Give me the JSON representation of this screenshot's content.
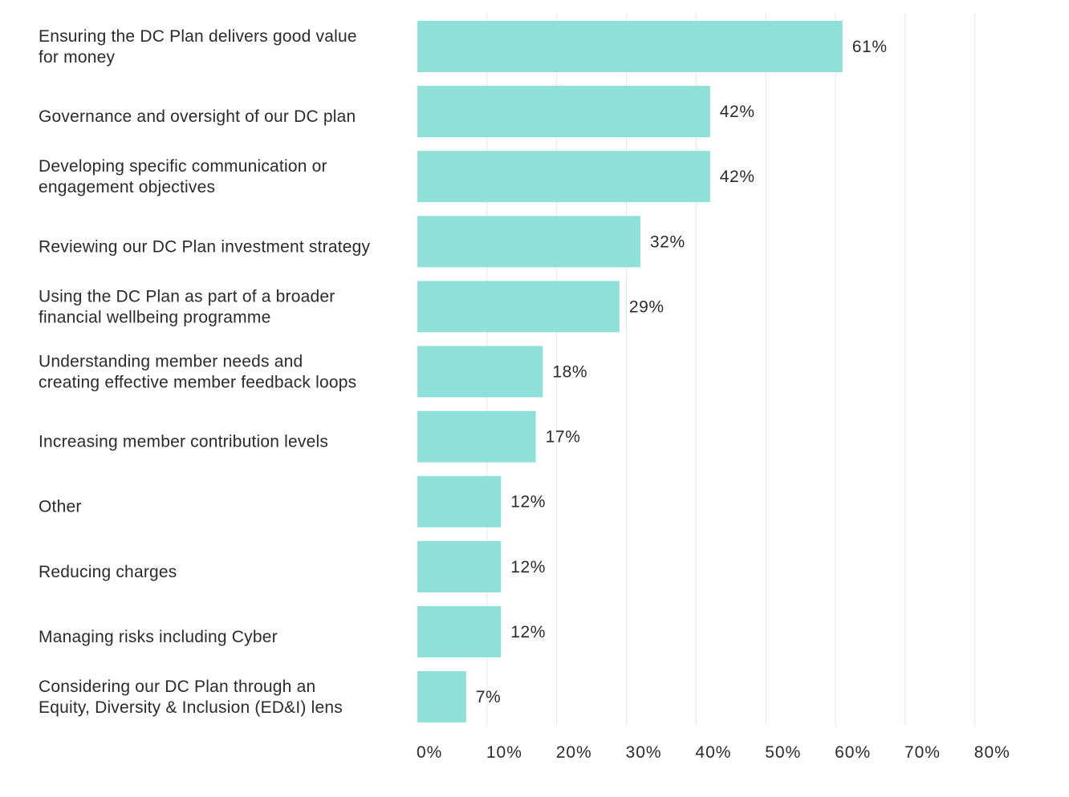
{
  "chart_data": {
    "type": "bar",
    "orientation": "horizontal",
    "title": "",
    "xlabel": "",
    "ylabel": "",
    "xlim": [
      0,
      80
    ],
    "grid": true,
    "bar_color": "#8fe0d8",
    "categories": [
      [
        "Ensuring the DC Plan delivers good value",
        "for money"
      ],
      [
        "Governance and oversight of our DC plan"
      ],
      [
        "Developing specific communication or",
        "engagement objectives"
      ],
      [
        "Reviewing our DC Plan investment strategy"
      ],
      [
        "Using the DC Plan as part of a broader",
        "financial wellbeing programme"
      ],
      [
        "Understanding member needs and",
        "creating effective member feedback loops"
      ],
      [
        "Increasing member contribution levels"
      ],
      [
        "Other"
      ],
      [
        "Reducing charges"
      ],
      [
        "Managing risks including Cyber"
      ],
      [
        "Considering our DC Plan through an",
        "Equity, Diversity & Inclusion (ED&I) lens"
      ]
    ],
    "values": [
      61,
      42,
      42,
      32,
      29,
      18,
      17,
      12,
      12,
      12,
      7
    ],
    "value_labels": [
      "61%",
      "42%",
      "42%",
      "32%",
      "29%",
      "18%",
      "17%",
      "12%",
      "12%",
      "12%",
      "7%"
    ],
    "ticks": [
      0,
      10,
      20,
      30,
      40,
      50,
      60,
      70,
      80
    ],
    "tick_labels": [
      "0%",
      "10%",
      "20%",
      "30%",
      "40%",
      "50%",
      "60%",
      "70%",
      "80%"
    ]
  }
}
